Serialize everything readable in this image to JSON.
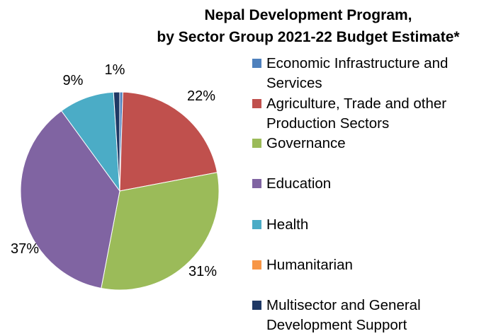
{
  "chart_data": {
    "type": "pie",
    "title_line1": "Nepal Development Program,",
    "title_line2": "by Sector Group 2021-22 Budget Estimate*",
    "slices": [
      {
        "label": "Economic Infrastructure and Services",
        "value": 0.5,
        "color": "#4F81BD",
        "data_label": ""
      },
      {
        "label": "Agriculture, Trade and other Production Sectors",
        "value": 21.5,
        "color": "#C0504D",
        "data_label": "22%"
      },
      {
        "label": "Governance",
        "value": 31,
        "color": "#9BBB59",
        "data_label": "31%"
      },
      {
        "label": "Education",
        "value": 37,
        "color": "#8064A2",
        "data_label": "37%"
      },
      {
        "label": "Health",
        "value": 9,
        "color": "#4BACC6",
        "data_label": "9%"
      },
      {
        "label": "Humanitarian",
        "value": 0,
        "color": "#F79646",
        "data_label": ""
      },
      {
        "label": "Multisector and General Development Support",
        "value": 1,
        "color": "#1F3864",
        "data_label": "1%"
      }
    ],
    "legend_position": "right"
  }
}
